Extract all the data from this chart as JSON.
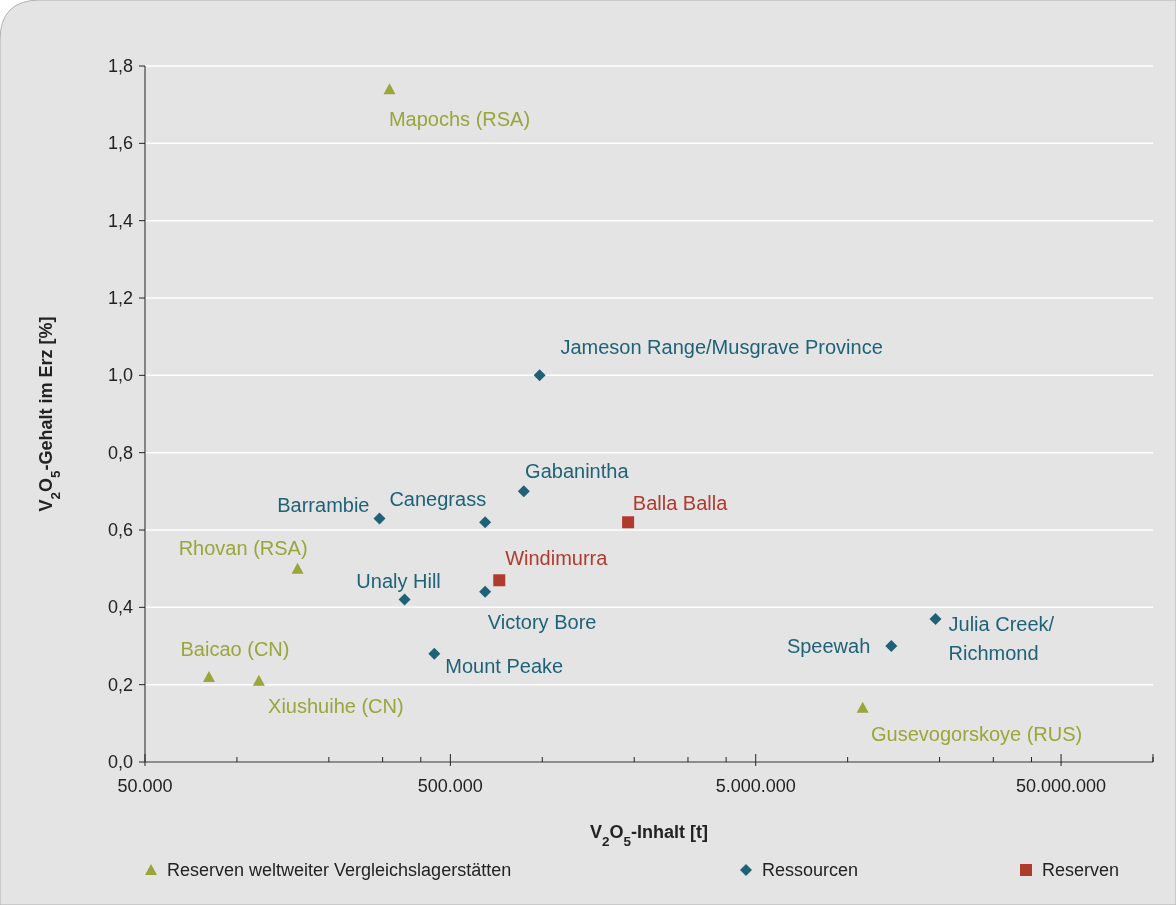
{
  "chart_data": {
    "type": "scatter",
    "xlabel": "V$_{2}$O$_{5}$-Inhalt [t]",
    "ylabel": "V$_{2}$O$_{5}$-Gehalt im Erz [%]",
    "log": "x",
    "xlim": [
      50000,
      100000000
    ],
    "xticks": [
      {
        "value": 50000,
        "label": "50.000"
      },
      {
        "value": 100000,
        "label": null
      },
      {
        "value": 200000,
        "label": null
      },
      {
        "value": 300000,
        "label": null
      },
      {
        "value": 400000,
        "label": null
      },
      {
        "value": 500000,
        "label": "500.000"
      },
      {
        "value": 1000000,
        "label": null
      },
      {
        "value": 2000000,
        "label": null
      },
      {
        "value": 3000000,
        "label": null
      },
      {
        "value": 4000000,
        "label": null
      },
      {
        "value": 5000000,
        "label": "5.000.000"
      },
      {
        "value": 10000000,
        "label": null
      },
      {
        "value": 20000000,
        "label": null
      },
      {
        "value": 30000000,
        "label": null
      },
      {
        "value": 40000000,
        "label": null
      },
      {
        "value": 50000000,
        "label": "50.000.000"
      },
      {
        "value": 100000000,
        "label": null
      }
    ],
    "ylim": [
      0,
      1.8
    ],
    "yticks": [
      {
        "value": 0,
        "label": "0,0"
      },
      {
        "value": 0.2,
        "label": "0,2"
      },
      {
        "value": 0.4,
        "label": "0,4"
      },
      {
        "value": 0.6,
        "label": "0,6"
      },
      {
        "value": 0.8,
        "label": "0,8"
      },
      {
        "value": 1.0,
        "label": "1,0"
      },
      {
        "value": 1.2,
        "label": "1,2"
      },
      {
        "value": 1.4,
        "label": "1,4"
      },
      {
        "value": 1.6,
        "label": "1,6"
      },
      {
        "value": 1.8,
        "label": "1,8"
      }
    ],
    "grid": "y",
    "legend": "bottom",
    "series": [
      {
        "name": "Reserven weltweiter Vergleichslagerstätten",
        "color": "#9aa53a",
        "marker": "triangle",
        "x": [
          316000,
          158000,
          81000,
          118000,
          11200000
        ],
        "values": [
          1.74,
          0.5,
          0.22,
          0.21,
          0.14
        ]
      },
      {
        "name": "Ressourcen",
        "color": "#1f6277",
        "marker": "diamond",
        "x": [
          980000,
          870000,
          293000,
          650000,
          354000,
          650000,
          443000,
          13900000,
          19400000
        ],
        "values": [
          1.0,
          0.7,
          0.63,
          0.62,
          0.42,
          0.44,
          0.28,
          0.3,
          0.37
        ]
      },
      {
        "name": "Reserven",
        "color": "#b03a2e",
        "marker": "square",
        "x": [
          723000,
          1910000
        ],
        "values": [
          0.47,
          0.62
        ]
      }
    ],
    "annotations": [
      {
        "text": "Mapochs (RSA)",
        "x": 316000,
        "y": 1.74
      },
      {
        "text": "Rhovan (RSA)",
        "x": 158000,
        "y": 0.5
      },
      {
        "text": "Baicao (CN)",
        "x": 81000,
        "y": 0.22
      },
      {
        "text": "Xiushuihe (CN)",
        "x": 118000,
        "y": 0.21
      },
      {
        "text": "Gusevogorskoye (RUS)",
        "x": 11200000,
        "y": 0.14
      },
      {
        "text": "Jameson Range/Musgrave Province",
        "x": 980000,
        "y": 1.0
      },
      {
        "text": "Gabanintha",
        "x": 870000,
        "y": 0.7
      },
      {
        "text": "Barrambie",
        "x": 293000,
        "y": 0.63
      },
      {
        "text": "Canegrass",
        "x": 650000,
        "y": 0.62
      },
      {
        "text": "Unaly Hill",
        "x": 354000,
        "y": 0.42
      },
      {
        "text": "Victory Bore",
        "x": 650000,
        "y": 0.44
      },
      {
        "text": "Mount Peake",
        "x": 443000,
        "y": 0.28
      },
      {
        "text": "Speewah",
        "x": 13900000,
        "y": 0.3
      },
      {
        "text": "Julia Creek/\nRichmond",
        "x": 19400000,
        "y": 0.37
      },
      {
        "text": "Windimurra",
        "x": 723000,
        "y": 0.47
      },
      {
        "text": "Balla Balla",
        "x": 1910000,
        "y": 0.62
      }
    ]
  }
}
